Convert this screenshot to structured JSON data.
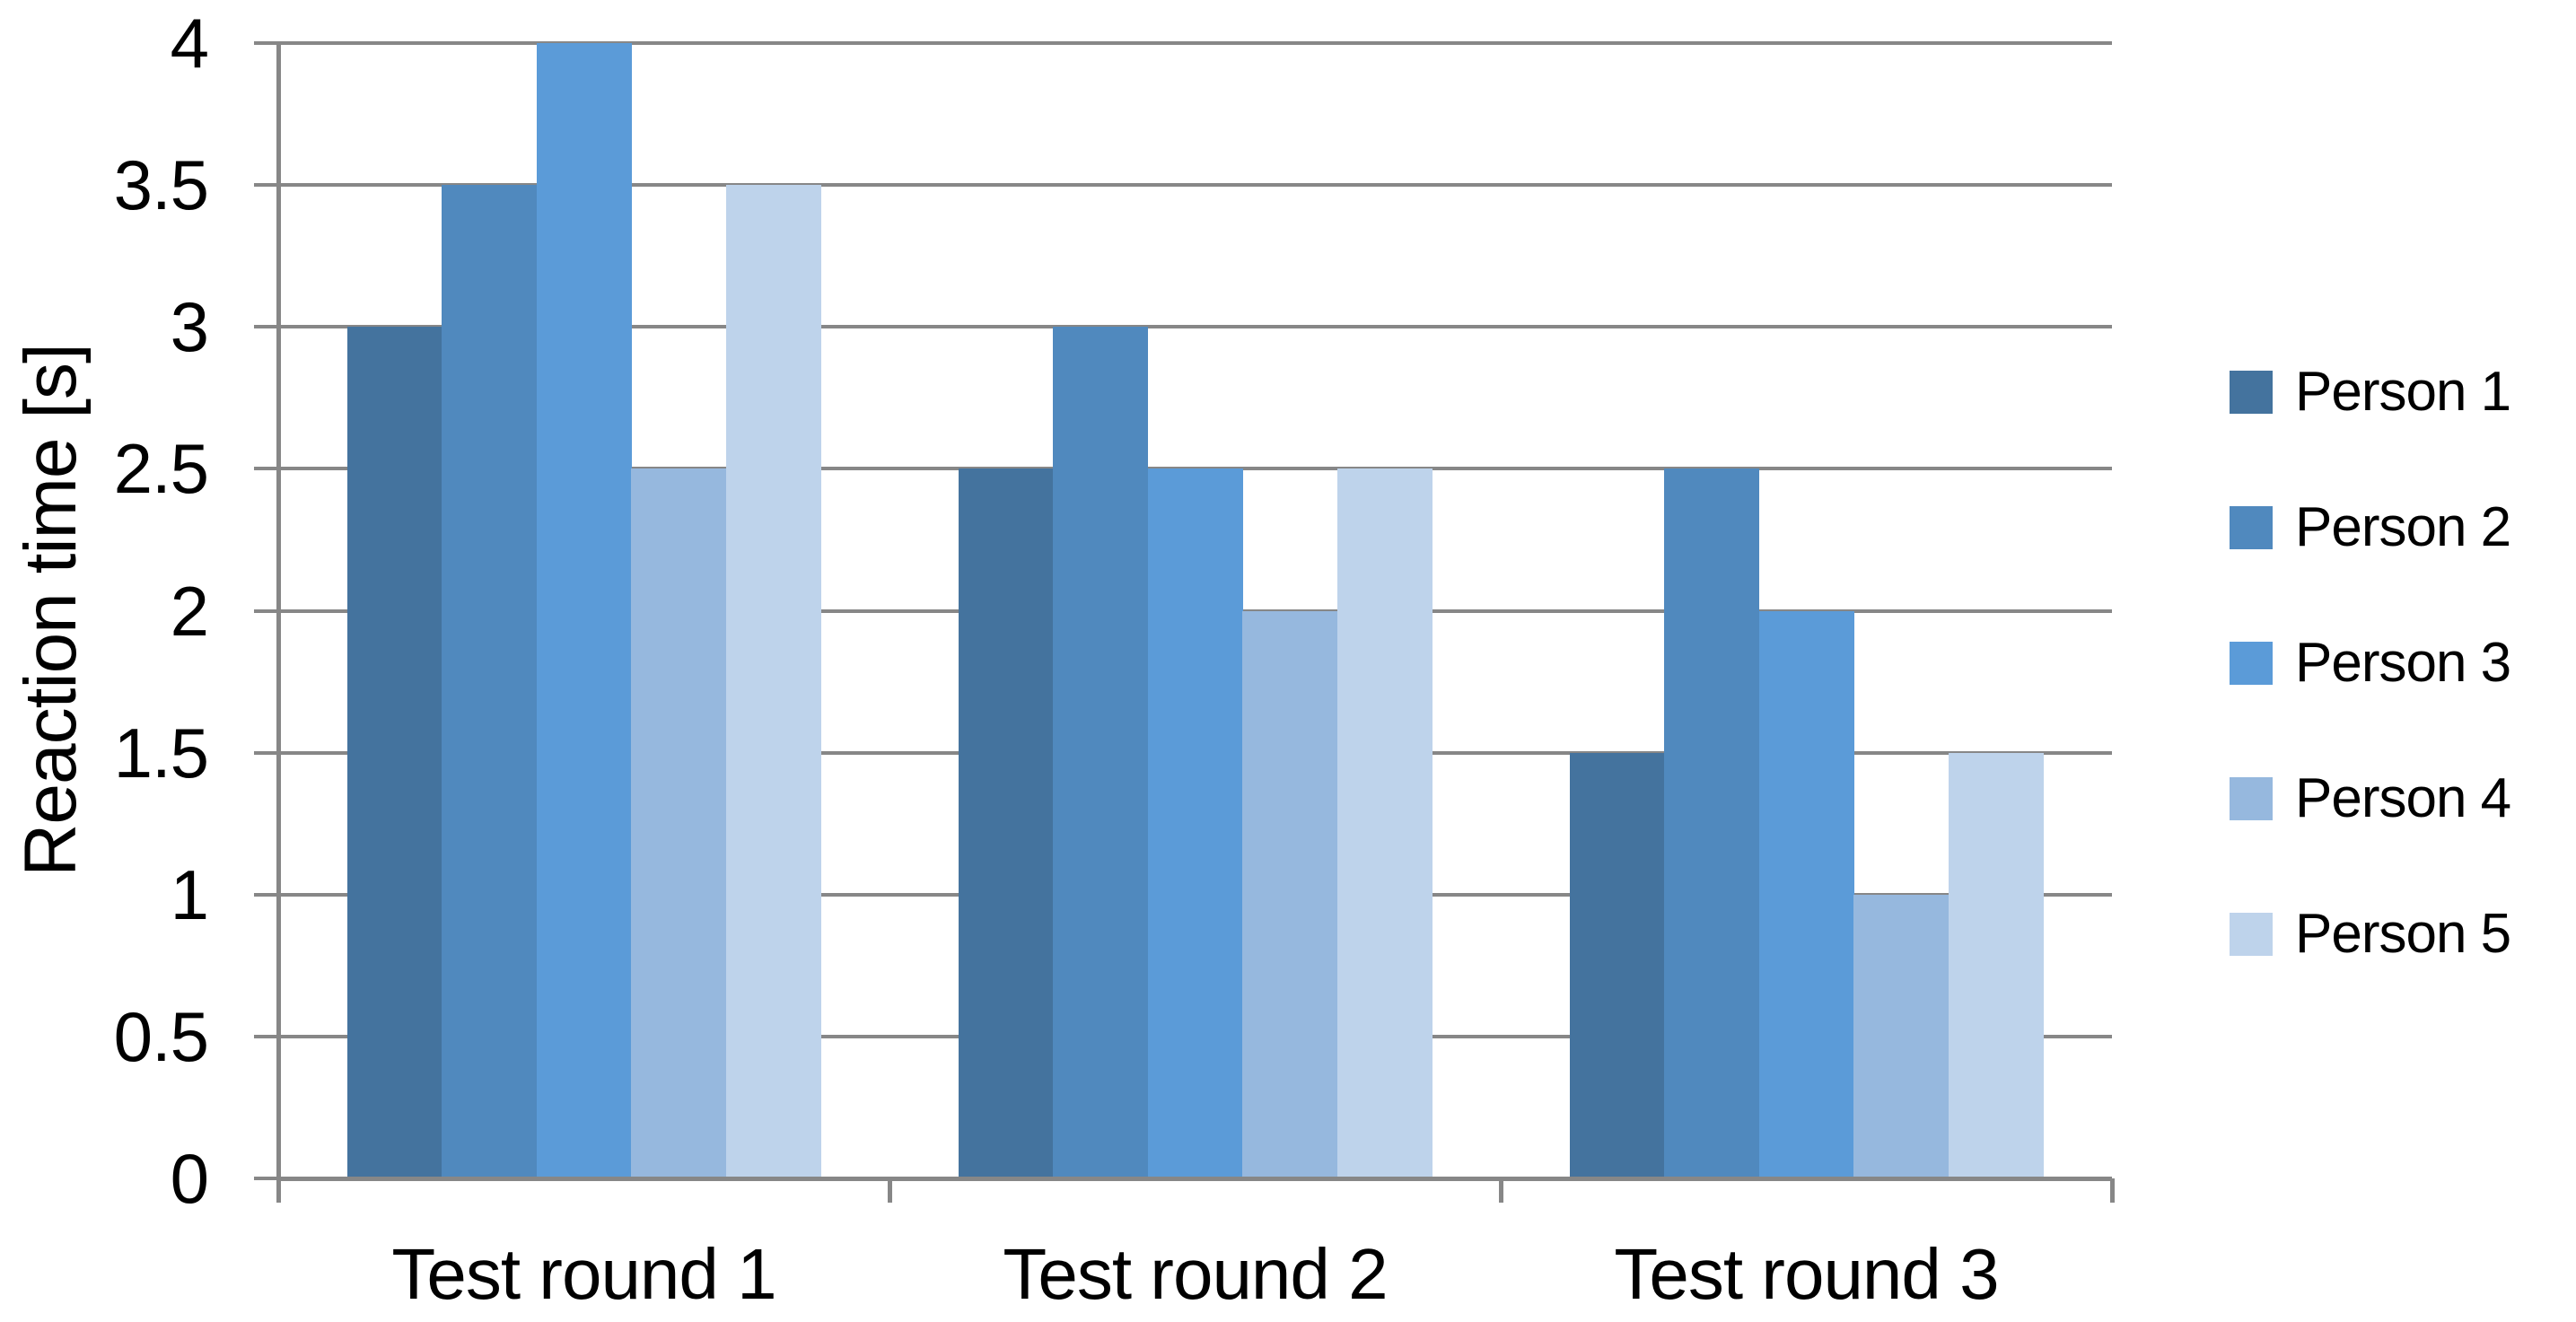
{
  "chart_data": {
    "type": "bar",
    "title": "",
    "categories": [
      "Test round 1",
      "Test round 2",
      "Test round 3"
    ],
    "series": [
      {
        "name": "Person 1",
        "color": "#44739E",
        "values": [
          3,
          2.5,
          1.5
        ]
      },
      {
        "name": "Person 2",
        "color": "#5089BE",
        "values": [
          3.5,
          3,
          2.5
        ]
      },
      {
        "name": "Person 3",
        "color": "#5B9BD8",
        "values": [
          4,
          2.5,
          2
        ]
      },
      {
        "name": "Person 4",
        "color": "#96B8DE",
        "values": [
          2.5,
          2,
          1
        ]
      },
      {
        "name": "Person 5",
        "color": "#BED3EB",
        "values": [
          3.5,
          2.5,
          1.5
        ]
      }
    ],
    "xlabel": "",
    "ylabel": "Reaction time [s]",
    "ylim": [
      0,
      4
    ],
    "ytick_step": 0.5,
    "ytick_labels": [
      "0",
      "0.5",
      "1",
      "1.5",
      "2",
      "2.5",
      "3",
      "3.5",
      "4"
    ],
    "grid": true,
    "legend_position": "right",
    "axis_color": "#878787",
    "background": "#FFFFFF",
    "text_color": "#000000"
  }
}
